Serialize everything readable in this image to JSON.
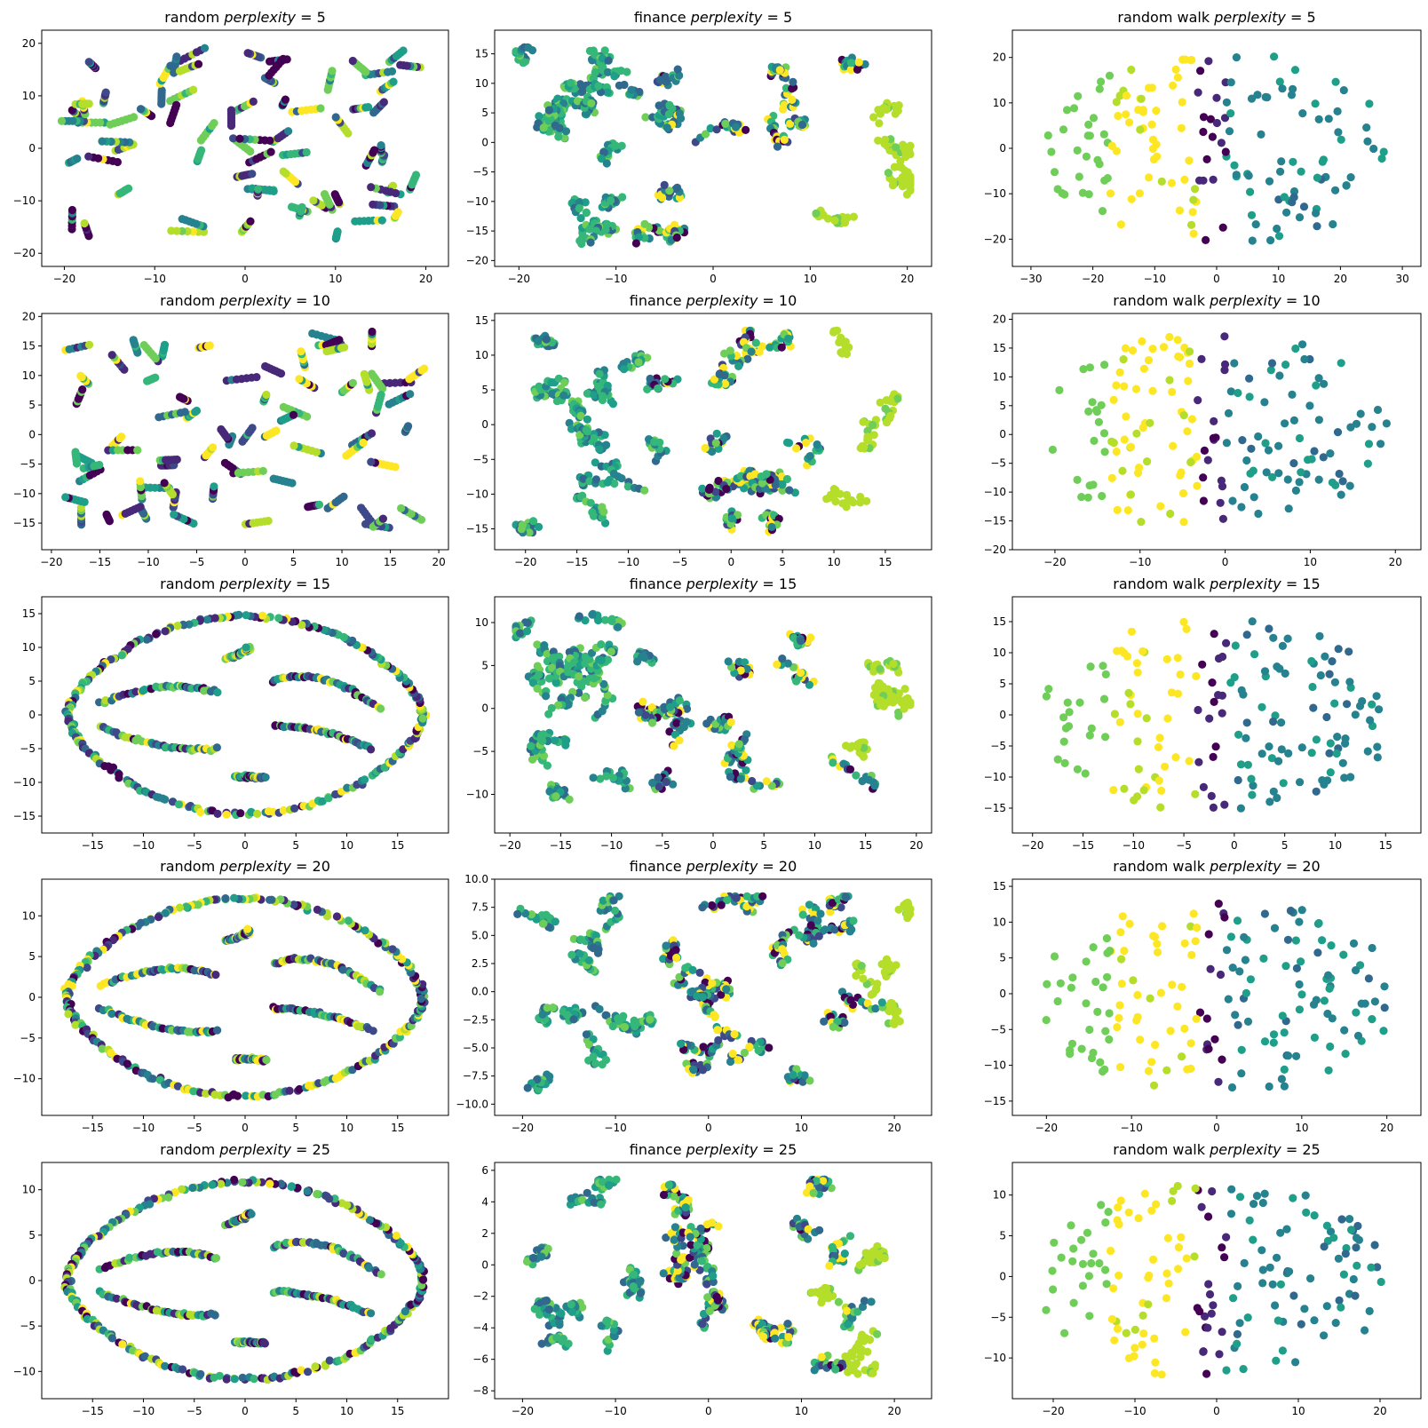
{
  "chart_data": [
    {
      "type": "scatter",
      "title_prefix": "random ",
      "title_var": "perplexity",
      "title_eq": " = 5",
      "xlim": [
        -22.5,
        22.5
      ],
      "ylim": [
        -22.5,
        22.5
      ],
      "xticks": [
        -20,
        -10,
        0,
        10,
        20
      ],
      "yticks": [
        -20,
        -10,
        0,
        10,
        20
      ],
      "layout": "random",
      "colormap": "viridis"
    },
    {
      "type": "scatter",
      "title_prefix": "finance ",
      "title_var": "perplexity",
      "title_eq": " = 5",
      "xlim": [
        -22.5,
        22.5
      ],
      "ylim": [
        -21,
        19
      ],
      "xticks": [
        -20,
        -10,
        0,
        10,
        20
      ],
      "yticks": [
        -20,
        -15,
        -10,
        -5,
        0,
        5,
        10,
        15
      ],
      "layout": "finance",
      "colormap": "viridis"
    },
    {
      "type": "scatter",
      "title_prefix": "random walk ",
      "title_var": "perplexity",
      "title_eq": " = 5",
      "xlim": [
        -33,
        33
      ],
      "ylim": [
        -26,
        26
      ],
      "xticks": [
        -30,
        -20,
        -10,
        0,
        10,
        20,
        30
      ],
      "yticks": [
        -20,
        -10,
        0,
        10,
        20
      ],
      "layout": "walk",
      "colormap": "viridis"
    },
    {
      "type": "scatter",
      "title_prefix": "random ",
      "title_var": "perplexity",
      "title_eq": " = 10",
      "xlim": [
        -21,
        21
      ],
      "ylim": [
        -19.5,
        20.5
      ],
      "xticks": [
        -20,
        -15,
        -10,
        -5,
        0,
        5,
        10,
        15,
        20
      ],
      "yticks": [
        -15,
        -10,
        -5,
        0,
        5,
        10,
        15,
        20
      ],
      "layout": "random",
      "colormap": "viridis"
    },
    {
      "type": "scatter",
      "title_prefix": "finance ",
      "title_var": "perplexity",
      "title_eq": " = 10",
      "xlim": [
        -23,
        19.5
      ],
      "ylim": [
        -18,
        16
      ],
      "xticks": [
        -20,
        -15,
        -10,
        -5,
        0,
        5,
        10,
        15
      ],
      "yticks": [
        -15,
        -10,
        -5,
        0,
        5,
        10,
        15
      ],
      "layout": "finance",
      "colormap": "viridis"
    },
    {
      "type": "scatter",
      "title_prefix": "random walk ",
      "title_var": "perplexity",
      "title_eq": " = 10",
      "xlim": [
        -25,
        23
      ],
      "ylim": [
        -20,
        21
      ],
      "xticks": [
        -20,
        -10,
        0,
        10,
        20
      ],
      "yticks": [
        -20,
        -15,
        -10,
        -5,
        0,
        5,
        10,
        15,
        20
      ],
      "layout": "walk",
      "colormap": "viridis"
    },
    {
      "type": "scatter",
      "title_prefix": "random ",
      "title_var": "perplexity",
      "title_eq": " = 15",
      "xlim": [
        -20,
        20
      ],
      "ylim": [
        -17.5,
        17.5
      ],
      "xticks": [
        -15,
        -10,
        -5,
        0,
        5,
        10,
        15
      ],
      "yticks": [
        -15,
        -10,
        -5,
        0,
        5,
        10,
        15
      ],
      "layout": "ring",
      "colormap": "viridis"
    },
    {
      "type": "scatter",
      "title_prefix": "finance ",
      "title_var": "perplexity",
      "title_eq": " = 15",
      "xlim": [
        -21.5,
        21.5
      ],
      "ylim": [
        -14.5,
        13
      ],
      "xticks": [
        -20,
        -15,
        -10,
        -5,
        0,
        5,
        10,
        15,
        20
      ],
      "yticks": [
        -10,
        -5,
        0,
        5,
        10
      ],
      "layout": "finance",
      "colormap": "viridis"
    },
    {
      "type": "scatter",
      "title_prefix": "random walk ",
      "title_var": "perplexity",
      "title_eq": " = 15",
      "xlim": [
        -22,
        18.5
      ],
      "ylim": [
        -19,
        19
      ],
      "xticks": [
        -20,
        -15,
        -10,
        -5,
        0,
        5,
        10,
        15
      ],
      "yticks": [
        -15,
        -10,
        -5,
        0,
        5,
        10,
        15
      ],
      "layout": "walk",
      "colormap": "viridis"
    },
    {
      "type": "scatter",
      "title_prefix": "random ",
      "title_var": "perplexity",
      "title_eq": " = 20",
      "xlim": [
        -20,
        20
      ],
      "ylim": [
        -14.5,
        14.5
      ],
      "xticks": [
        -15,
        -10,
        -5,
        0,
        5,
        10,
        15
      ],
      "yticks": [
        -10,
        -5,
        0,
        5,
        10
      ],
      "layout": "ring",
      "colormap": "viridis"
    },
    {
      "type": "scatter",
      "title_prefix": "finance ",
      "title_var": "perplexity",
      "title_eq": " = 20",
      "xlim": [
        -23,
        24
      ],
      "ylim": [
        -11,
        10
      ],
      "xticks": [
        -20,
        -10,
        0,
        10,
        20
      ],
      "yticks": [
        -10.0,
        -7.5,
        -5.0,
        -2.5,
        0.0,
        2.5,
        5.0,
        7.5,
        10.0
      ],
      "layout": "finance",
      "colormap": "viridis"
    },
    {
      "type": "scatter",
      "title_prefix": "random walk ",
      "title_var": "perplexity",
      "title_eq": " = 20",
      "xlim": [
        -24,
        24
      ],
      "ylim": [
        -17,
        16
      ],
      "xticks": [
        -20,
        -10,
        0,
        10,
        20
      ],
      "yticks": [
        -15,
        -10,
        -5,
        0,
        5,
        10,
        15
      ],
      "layout": "walk",
      "colormap": "viridis"
    },
    {
      "type": "scatter",
      "title_prefix": "random ",
      "title_var": "perplexity",
      "title_eq": " = 25",
      "xlim": [
        -20,
        20
      ],
      "ylim": [
        -13,
        13
      ],
      "xticks": [
        -15,
        -10,
        -5,
        0,
        5,
        10,
        15
      ],
      "yticks": [
        -10,
        -5,
        0,
        5,
        10
      ],
      "layout": "ring",
      "colormap": "viridis"
    },
    {
      "type": "scatter",
      "title_prefix": "finance ",
      "title_var": "perplexity",
      "title_eq": " = 25",
      "xlim": [
        -23,
        24
      ],
      "ylim": [
        -8.5,
        6.5
      ],
      "xticks": [
        -20,
        -10,
        0,
        10,
        20
      ],
      "yticks": [
        -8,
        -6,
        -4,
        -2,
        0,
        2,
        4,
        6
      ],
      "layout": "finance",
      "colormap": "viridis"
    },
    {
      "type": "scatter",
      "title_prefix": "random walk ",
      "title_var": "perplexity",
      "title_eq": " = 25",
      "xlim": [
        -25,
        25
      ],
      "ylim": [
        -15,
        14
      ],
      "xticks": [
        -20,
        -10,
        0,
        10,
        20
      ],
      "yticks": [
        -10,
        -5,
        0,
        5,
        10
      ],
      "layout": "walk",
      "colormap": "viridis"
    }
  ]
}
